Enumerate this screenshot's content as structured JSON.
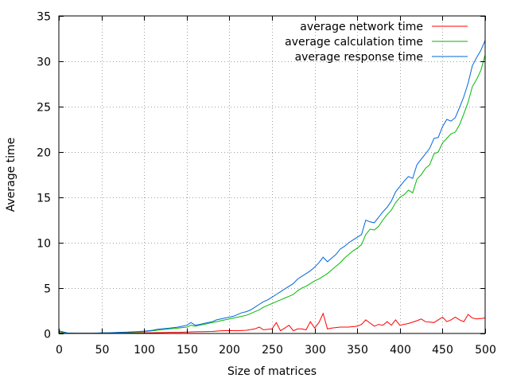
{
  "chart_data": {
    "type": "line",
    "title": "",
    "xlabel": "Size of matrices",
    "ylabel": "Average time",
    "xlim": [
      0,
      500
    ],
    "ylim": [
      0,
      35
    ],
    "xticks": [
      0,
      50,
      100,
      150,
      200,
      250,
      300,
      350,
      400,
      450,
      500
    ],
    "yticks": [
      0,
      5,
      10,
      15,
      20,
      25,
      30,
      35
    ],
    "grid": true,
    "legend_position": "top-right",
    "series": [
      {
        "name": "average network time",
        "color": "#ff0000",
        "x": [
          0,
          10,
          20,
          30,
          40,
          50,
          60,
          70,
          80,
          90,
          100,
          110,
          120,
          130,
          140,
          150,
          160,
          170,
          180,
          190,
          200,
          210,
          220,
          230,
          235,
          240,
          250,
          255,
          260,
          265,
          270,
          275,
          280,
          285,
          290,
          295,
          300,
          305,
          310,
          315,
          320,
          330,
          340,
          350,
          355,
          360,
          370,
          375,
          380,
          385,
          390,
          395,
          400,
          410,
          420,
          425,
          430,
          440,
          445,
          450,
          455,
          460,
          465,
          470,
          475,
          480,
          485,
          490,
          500
        ],
        "y": [
          0.05,
          0.02,
          0.02,
          0.02,
          0.02,
          0.03,
          0.03,
          0.04,
          0.05,
          0.05,
          0.06,
          0.08,
          0.1,
          0.12,
          0.12,
          0.15,
          0.18,
          0.2,
          0.22,
          0.3,
          0.32,
          0.3,
          0.35,
          0.5,
          0.7,
          0.4,
          0.5,
          1.2,
          0.3,
          0.6,
          0.9,
          0.3,
          0.5,
          0.5,
          0.4,
          1.3,
          0.6,
          1.2,
          2.2,
          0.5,
          0.6,
          0.7,
          0.7,
          0.8,
          1.0,
          1.5,
          0.8,
          1.0,
          0.9,
          1.3,
          0.9,
          1.5,
          0.9,
          1.1,
          1.4,
          1.6,
          1.3,
          1.2,
          1.5,
          1.8,
          1.3,
          1.5,
          1.8,
          1.5,
          1.3,
          2.1,
          1.7,
          1.6,
          1.7
        ]
      },
      {
        "name": "average calculation time",
        "color": "#00bb00",
        "x": [
          0,
          10,
          20,
          30,
          40,
          50,
          60,
          70,
          80,
          90,
          100,
          105,
          110,
          115,
          120,
          125,
          130,
          135,
          140,
          145,
          150,
          155,
          160,
          165,
          170,
          175,
          180,
          185,
          190,
          195,
          200,
          205,
          210,
          215,
          220,
          225,
          230,
          235,
          240,
          245,
          250,
          255,
          260,
          265,
          270,
          275,
          280,
          285,
          290,
          295,
          300,
          305,
          310,
          315,
          320,
          325,
          330,
          335,
          340,
          345,
          350,
          355,
          360,
          365,
          370,
          375,
          380,
          385,
          390,
          395,
          400,
          405,
          410,
          415,
          420,
          425,
          430,
          435,
          440,
          445,
          450,
          455,
          460,
          465,
          470,
          475,
          480,
          485,
          490,
          495,
          500
        ],
        "y": [
          0.2,
          0.02,
          0.02,
          0.02,
          0.03,
          0.05,
          0.07,
          0.1,
          0.12,
          0.15,
          0.2,
          0.25,
          0.3,
          0.35,
          0.4,
          0.45,
          0.5,
          0.55,
          0.6,
          0.65,
          0.7,
          0.9,
          0.8,
          0.9,
          1.0,
          1.1,
          1.2,
          1.3,
          1.4,
          1.5,
          1.6,
          1.7,
          1.8,
          1.9,
          2.0,
          2.2,
          2.4,
          2.6,
          2.9,
          3.1,
          3.3,
          3.5,
          3.7,
          3.9,
          4.1,
          4.3,
          4.7,
          5.0,
          5.2,
          5.5,
          5.8,
          6.0,
          6.3,
          6.6,
          7.0,
          7.4,
          7.8,
          8.3,
          8.7,
          9.1,
          9.4,
          9.8,
          10.9,
          11.5,
          11.4,
          11.8,
          12.5,
          13.1,
          13.6,
          14.4,
          15.0,
          15.3,
          15.8,
          15.5,
          17.0,
          17.5,
          18.2,
          18.6,
          19.8,
          20.0,
          21.0,
          21.5,
          22.0,
          22.2,
          23.0,
          24.2,
          25.5,
          27.2,
          28.0,
          29.0,
          30.7
        ]
      },
      {
        "name": "average response time",
        "color": "#0066dd",
        "x": [
          0,
          10,
          20,
          30,
          40,
          50,
          60,
          70,
          80,
          90,
          100,
          105,
          110,
          115,
          120,
          125,
          130,
          135,
          140,
          145,
          150,
          155,
          160,
          165,
          170,
          175,
          180,
          185,
          190,
          195,
          200,
          205,
          210,
          215,
          220,
          225,
          230,
          235,
          240,
          245,
          250,
          255,
          260,
          265,
          270,
          275,
          280,
          285,
          290,
          295,
          300,
          305,
          310,
          315,
          320,
          325,
          330,
          335,
          340,
          345,
          350,
          355,
          360,
          365,
          370,
          375,
          380,
          385,
          390,
          395,
          400,
          405,
          410,
          415,
          420,
          425,
          430,
          435,
          440,
          445,
          450,
          455,
          460,
          465,
          470,
          475,
          480,
          485,
          490,
          495,
          500
        ],
        "y": [
          0.3,
          0.05,
          0.02,
          0.02,
          0.03,
          0.06,
          0.08,
          0.12,
          0.15,
          0.2,
          0.25,
          0.3,
          0.35,
          0.45,
          0.5,
          0.55,
          0.6,
          0.65,
          0.7,
          0.8,
          0.9,
          1.2,
          0.9,
          1.0,
          1.1,
          1.2,
          1.3,
          1.5,
          1.6,
          1.7,
          1.8,
          1.9,
          2.1,
          2.3,
          2.4,
          2.6,
          2.9,
          3.2,
          3.5,
          3.7,
          4.0,
          4.3,
          4.6,
          4.9,
          5.2,
          5.5,
          6.0,
          6.3,
          6.6,
          6.9,
          7.3,
          7.8,
          8.4,
          7.9,
          8.3,
          8.7,
          9.3,
          9.6,
          10.0,
          10.3,
          10.6,
          10.9,
          12.5,
          12.3,
          12.2,
          12.8,
          13.4,
          13.9,
          14.6,
          15.6,
          16.2,
          16.8,
          17.3,
          17.1,
          18.6,
          19.2,
          19.8,
          20.4,
          21.5,
          21.6,
          22.8,
          23.6,
          23.4,
          23.8,
          24.9,
          26.1,
          27.6,
          29.5,
          30.4,
          31.2,
          32.3
        ]
      }
    ]
  }
}
